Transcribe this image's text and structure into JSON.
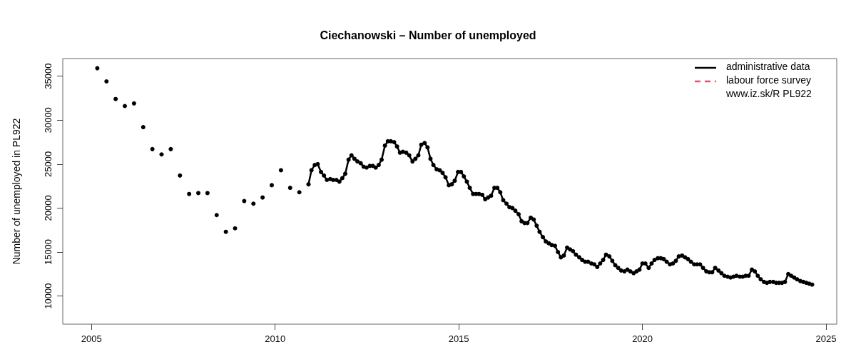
{
  "chart_data": {
    "type": "line",
    "title": "Ciechanowski – Number of unemployed",
    "ylabel": "Number of unemployed in PL922",
    "xlim": [
      2004.22,
      2025.29
    ],
    "xticks": [
      2005,
      2010,
      2015,
      2020,
      2025
    ],
    "ylim": [
      6800,
      37000
    ],
    "yticks": [
      10000,
      15000,
      20000,
      25000,
      30000,
      35000
    ],
    "grid": false,
    "legend": "top right",
    "marker": "circle",
    "annotations": [
      "www.iz.sk/R PL922"
    ],
    "series": [
      {
        "name": "administrative data",
        "color": "#000000",
        "line_style": "solid",
        "x": [
          2005.16,
          2005.28,
          2005.41,
          2005.53,
          2005.66,
          2005.78,
          2005.91,
          2006.03,
          2006.16,
          2006.28,
          2006.41,
          2006.53,
          2006.66,
          2006.78,
          2006.91,
          2007.03,
          2007.16,
          2007.28,
          2007.41,
          2007.53,
          2007.66,
          2007.78,
          2007.91,
          2008.03,
          2008.16,
          2008.28,
          2008.41,
          2008.53,
          2008.66,
          2008.78,
          2008.91,
          2009.03,
          2009.16,
          2009.28,
          2009.41,
          2009.53,
          2009.66,
          2009.78,
          2009.91,
          2010.03,
          2010.16,
          2010.28,
          2010.41,
          2010.53,
          2010.66,
          2010.78,
          2010.91,
          2010.99,
          2011.08,
          2011.16,
          2011.25,
          2011.33,
          2011.41,
          2011.5,
          2011.58,
          2011.67,
          2011.75,
          2011.83,
          2011.91,
          2012.0,
          2012.08,
          2012.16,
          2012.24,
          2012.33,
          2012.41,
          2012.49,
          2012.58,
          2012.66,
          2012.74,
          2012.82,
          2012.9,
          2012.99,
          2013.07,
          2013.15,
          2013.24,
          2013.32,
          2013.4,
          2013.48,
          2013.57,
          2013.65,
          2013.74,
          2013.82,
          2013.9,
          2013.98,
          2014.07,
          2014.15,
          2014.23,
          2014.31,
          2014.4,
          2014.48,
          2014.56,
          2014.64,
          2014.73,
          2014.81,
          2014.89,
          2014.98,
          2015.06,
          2015.14,
          2015.22,
          2015.3,
          2015.39,
          2015.47,
          2015.55,
          2015.64,
          2015.72,
          2015.8,
          2015.88,
          2015.97,
          2016.05,
          2016.13,
          2016.21,
          2016.3,
          2016.38,
          2016.46,
          2016.54,
          2016.63,
          2016.71,
          2016.79,
          2016.87,
          2016.96,
          2017.04,
          2017.12,
          2017.2,
          2017.29,
          2017.37,
          2017.45,
          2017.53,
          2017.62,
          2017.7,
          2017.78,
          2017.86,
          2017.95,
          2018.03,
          2018.11,
          2018.19,
          2018.28,
          2018.36,
          2018.44,
          2018.52,
          2018.61,
          2018.69,
          2018.77,
          2018.85,
          2018.93,
          2019.01,
          2019.1,
          2019.18,
          2019.26,
          2019.34,
          2019.42,
          2019.51,
          2019.59,
          2019.67,
          2019.76,
          2019.84,
          2019.92,
          2020.0,
          2020.08,
          2020.17,
          2020.25,
          2020.33,
          2020.42,
          2020.5,
          2020.58,
          2020.66,
          2020.75,
          2020.83,
          2020.91,
          2020.99,
          2021.08,
          2021.16,
          2021.24,
          2021.32,
          2021.41,
          2021.49,
          2021.57,
          2021.65,
          2021.74,
          2021.82,
          2021.9,
          2021.98,
          2022.07,
          2022.15,
          2022.23,
          2022.32,
          2022.4,
          2022.48,
          2022.56,
          2022.65,
          2022.73,
          2022.81,
          2022.89,
          2022.98,
          2023.06,
          2023.14,
          2023.22,
          2023.31,
          2023.39,
          2023.47,
          2023.56,
          2023.64,
          2023.72,
          2023.8,
          2023.88,
          2023.97,
          2024.05,
          2024.13,
          2024.21,
          2024.3,
          2024.38,
          2024.46,
          2024.54,
          2024.62
        ],
        "values": [
          35900,
          null,
          34400,
          null,
          32400,
          null,
          31600,
          null,
          31900,
          null,
          29200,
          null,
          26700,
          null,
          26100,
          null,
          26700,
          null,
          23700,
          null,
          21600,
          null,
          21700,
          null,
          21700,
          null,
          19200,
          null,
          17300,
          null,
          17700,
          null,
          20800,
          null,
          20500,
          null,
          21200,
          null,
          22600,
          null,
          24300,
          null,
          22300,
          null,
          21800,
          null,
          22700,
          24300,
          24900,
          25000,
          24100,
          23700,
          23200,
          23300,
          23200,
          23200,
          23000,
          23400,
          23900,
          25500,
          26000,
          25600,
          25300,
          25100,
          24700,
          24600,
          24800,
          24800,
          24600,
          24900,
          25500,
          27100,
          27600,
          27600,
          27500,
          27000,
          26300,
          26400,
          26300,
          26000,
          25300,
          25600,
          26000,
          27200,
          27400,
          26900,
          25600,
          24900,
          24400,
          24300,
          24000,
          23500,
          22600,
          22700,
          23100,
          24100,
          24100,
          23600,
          23000,
          22300,
          21600,
          21600,
          21600,
          21500,
          21000,
          21200,
          21400,
          22300,
          22300,
          21800,
          20900,
          20500,
          20100,
          20000,
          19700,
          19300,
          18500,
          18300,
          18300,
          18900,
          18700,
          18000,
          17300,
          16700,
          16200,
          16000,
          15800,
          15700,
          15000,
          14400,
          14600,
          15500,
          15300,
          15100,
          14700,
          14400,
          14100,
          13900,
          13900,
          13700,
          13600,
          13300,
          13700,
          14100,
          14700,
          14500,
          14000,
          13500,
          13200,
          12900,
          12800,
          13000,
          12800,
          12600,
          12800,
          13000,
          13700,
          13700,
          13200,
          13700,
          14100,
          14300,
          14300,
          14200,
          13900,
          13600,
          13700,
          14000,
          14500,
          14600,
          14400,
          14200,
          13900,
          13600,
          13600,
          13600,
          13200,
          12800,
          12700,
          12700,
          13200,
          12900,
          12600,
          12300,
          12200,
          12100,
          12200,
          12300,
          12200,
          12200,
          12300,
          12300,
          13000,
          12800,
          12300,
          11900,
          11600,
          11500,
          11600,
          11600,
          11500,
          11500,
          11500,
          11600,
          12500,
          12300,
          12100,
          11900,
          11700,
          11600,
          11500,
          11400,
          11300
        ]
      },
      {
        "name": "labour force survey",
        "color": "#df536b",
        "line_style": "dashed"
      }
    ]
  }
}
